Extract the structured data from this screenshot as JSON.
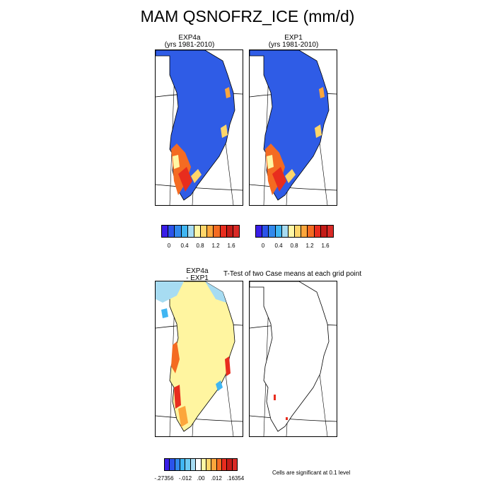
{
  "title": "MAM QSNOFRZ_ICE (mm/d)",
  "panels": {
    "exp4a": {
      "name": "EXP4a",
      "years": "(yrs 1981-2010)"
    },
    "exp1": {
      "name": "EXP1",
      "years": "(yrs 1981-2010)"
    },
    "diff": {
      "name": "EXP4a",
      "sub": "- EXP1"
    },
    "ttest": {
      "title": "T-Test of two Case means at each grid point"
    }
  },
  "legend_abs": {
    "colors": [
      "#3a1ee8",
      "#2b53ea",
      "#3289ec",
      "#40b6f2",
      "#a7dcf2",
      "#fff7a5",
      "#ffd66a",
      "#fca63c",
      "#f46b22",
      "#e82d1e",
      "#c41c17",
      "#d92a26"
    ],
    "labels": [
      "0",
      "0.4",
      "0.8",
      "1.2",
      "1.6"
    ]
  },
  "legend_diff": {
    "colors": [
      "#3a1ee8",
      "#2b53ea",
      "#3289ec",
      "#40b6f2",
      "#6ccbf3",
      "#a7dcf2",
      "#ffffff",
      "#fff7a5",
      "#ffd66a",
      "#fca63c",
      "#f46b22",
      "#e82d1e",
      "#c41c17",
      "#d92a26"
    ],
    "labels": [
      "-.27356",
      "-.012",
      ".00",
      ".012",
      ".16354"
    ]
  },
  "note": "Cells are significant at 0.1 level",
  "colors": {
    "ice_blue": "#2f5ce6",
    "diff_yellow": "#fff5a0"
  }
}
